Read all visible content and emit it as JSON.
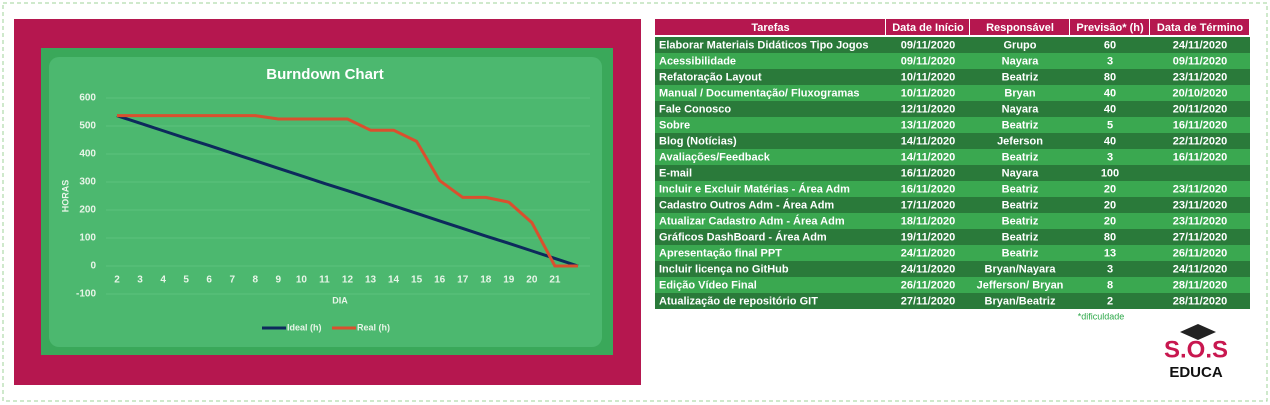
{
  "chart_data": {
    "type": "line",
    "title": "Burndown Chart",
    "x_label": "DIA",
    "y_label": "HORAS",
    "categories": [
      "2",
      "3",
      "4",
      "5",
      "6",
      "7",
      "8",
      "9",
      "10",
      "11",
      "12",
      "13",
      "14",
      "15",
      "16",
      "17",
      "18",
      "19",
      "20",
      "21",
      null
    ],
    "series": [
      {
        "name": "Ideal (h)",
        "color": "#0d2a5c",
        "values": [
          537,
          510,
          483,
          456,
          430,
          403,
          376,
          349,
          322,
          295,
          269,
          242,
          215,
          188,
          161,
          134,
          107,
          81,
          54,
          27,
          0
        ]
      },
      {
        "name": "Real (h)",
        "color": "#d9502e",
        "values": [
          537,
          537,
          537,
          537,
          537,
          537,
          537,
          525,
          525,
          525,
          525,
          485,
          485,
          445,
          305,
          245,
          245,
          228,
          155,
          0,
          0
        ]
      }
    ],
    "ylim": [
      -100,
      600
    ],
    "yticks": [
      -100,
      0,
      100,
      200,
      300,
      400,
      500,
      600
    ],
    "grid": true,
    "legend": "bottom"
  },
  "table": {
    "header": [
      "Tarefas",
      "Data de Início",
      "Responsável",
      "Previsão* (h)",
      "Data de Término"
    ],
    "rows": [
      [
        "Elaborar Materiais Didáticos Tipo Jogos",
        "09/11/2020",
        "Grupo",
        "60",
        "24/11/2020"
      ],
      [
        "Acessibilidade",
        "09/11/2020",
        "Nayara",
        "3",
        "09/11/2020"
      ],
      [
        "Refatoração Layout",
        "10/11/2020",
        "Beatriz",
        "80",
        "23/11/2020"
      ],
      [
        "Manual / Documentação/ Fluxogramas",
        "10/11/2020",
        "Bryan",
        "40",
        "20/10/2020"
      ],
      [
        "Fale Conosco",
        "12/11/2020",
        "Nayara",
        "40",
        "20/11/2020"
      ],
      [
        "Sobre",
        "13/11/2020",
        "Beatriz",
        "5",
        "16/11/2020"
      ],
      [
        "Blog (Notícias)",
        "14/11/2020",
        "Jeferson",
        "40",
        "22/11/2020"
      ],
      [
        "Avaliações/Feedback",
        "14/11/2020",
        "Beatriz",
        "3",
        "16/11/2020"
      ],
      [
        "E-mail",
        "16/11/2020",
        "Nayara",
        "100",
        ""
      ],
      [
        "Incluir e Excluir Matérias - Área Adm",
        "16/11/2020",
        "Beatriz",
        "20",
        "23/11/2020"
      ],
      [
        "Cadastro Outros Adm  - Área Adm",
        "17/11/2020",
        "Beatriz",
        "20",
        "23/11/2020"
      ],
      [
        "Atualizar Cadastro Adm  - Área Adm",
        "18/11/2020",
        "Beatriz",
        "20",
        "23/11/2020"
      ],
      [
        "Gráficos DashBoard - Área Adm",
        "19/11/2020",
        "Beatriz",
        "80",
        "27/11/2020"
      ],
      [
        "Apresentação final PPT",
        "24/11/2020",
        "Beatriz",
        "13",
        "26/11/2020"
      ],
      [
        "Incluir licença no GitHub",
        "24/11/2020",
        "Bryan/Nayara",
        "3",
        "24/11/2020"
      ],
      [
        "Edição Vídeo Final",
        "26/11/2020",
        "Jefferson/ Bryan",
        "8",
        "28/11/2020"
      ],
      [
        "Atualização de repositório GIT",
        "27/11/2020",
        "Bryan/Beatriz",
        "2",
        "28/11/2020"
      ]
    ],
    "footnote": "*dificuldade"
  },
  "logo": {
    "line1": "S.O.S",
    "line2": "EDUCA"
  }
}
